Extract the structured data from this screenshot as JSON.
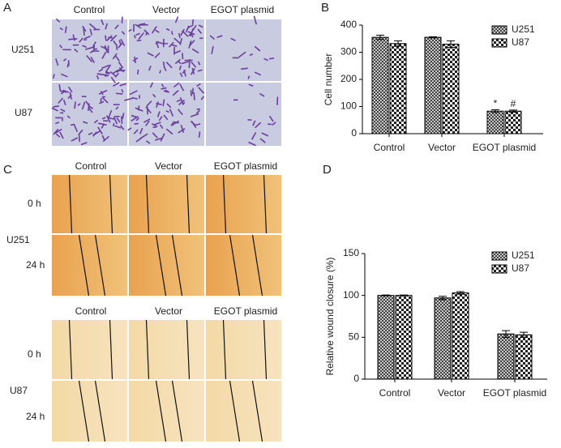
{
  "panel_labels": [
    "A",
    "B",
    "C",
    "D"
  ],
  "panel_a": {
    "columns": [
      "Control",
      "Vector",
      "EGOT plasmid"
    ],
    "rows": [
      "U251",
      "U87"
    ]
  },
  "panel_c": {
    "groups": [
      {
        "columns": [
          "Control",
          "Vector",
          "EGOT plasmid"
        ],
        "name": "U251",
        "times": [
          "0 h",
          "24 h"
        ]
      },
      {
        "columns": [
          "Control",
          "Vector",
          "EGOT plasmid"
        ],
        "name": "U87",
        "times": [
          "0 h",
          "24 h"
        ]
      }
    ]
  },
  "chart_data": [
    {
      "type": "bar",
      "y_label": "Cell number",
      "categories": [
        "Control",
        "Vector",
        "EGOT plasmid"
      ],
      "series": [
        {
          "name": "U251",
          "pattern": "crosshatch",
          "values": [
            355,
            355,
            83
          ],
          "errors": [
            8,
            2,
            5
          ],
          "annotations": [
            null,
            null,
            "*"
          ]
        },
        {
          "name": "U87",
          "pattern": "checker",
          "values": [
            332,
            330,
            83
          ],
          "errors": [
            10,
            12,
            4
          ],
          "annotations": [
            null,
            null,
            "#"
          ]
        }
      ],
      "ylim": [
        0,
        400
      ],
      "yticks": [
        0,
        100,
        200,
        300,
        400
      ],
      "legend": "top-right",
      "grid": false
    },
    {
      "type": "bar",
      "y_label": "Relative wound closure (%)",
      "categories": [
        "Control",
        "Vector",
        "EGOT plasmid"
      ],
      "series": [
        {
          "name": "U251",
          "pattern": "crosshatch",
          "values": [
            100,
            97,
            54
          ],
          "errors": [
            0.5,
            2,
            4
          ]
        },
        {
          "name": "U87",
          "pattern": "checker",
          "values": [
            100,
            103,
            53
          ],
          "errors": [
            0.5,
            1.5,
            3
          ]
        }
      ],
      "ylim": [
        0,
        150
      ],
      "yticks": [
        0,
        50,
        100,
        150
      ],
      "legend": "top-right",
      "grid": false
    }
  ]
}
